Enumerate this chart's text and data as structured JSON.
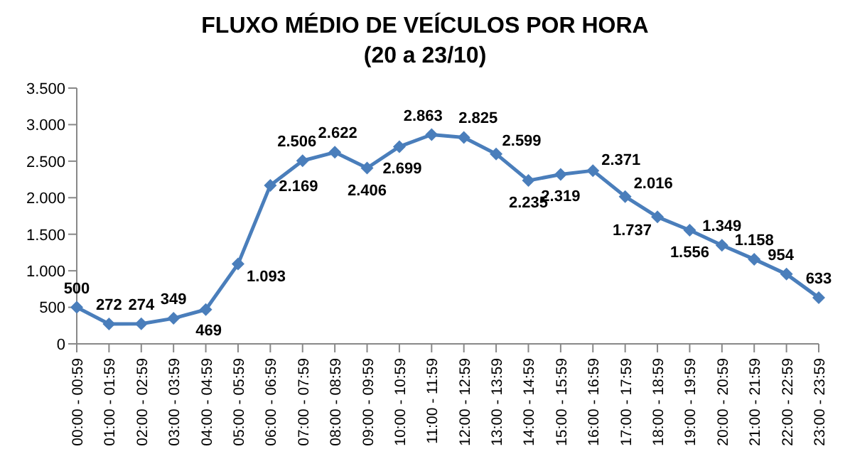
{
  "chart_data": {
    "type": "line",
    "title": "FLUXO MÉDIO DE VEÍCULOS POR HORA",
    "subtitle": "(20 a 23/10)",
    "categories": [
      "00:00 - 00:59",
      "01:00 - 01:59",
      "02:00 - 02:59",
      "03:00 - 03:59",
      "04:00 - 04:59",
      "05:00 - 05:59",
      "06:00 - 06:59",
      "07:00 - 07:59",
      "08:00 - 08:59",
      "09:00 - 09:59",
      "10:00 - 10:59",
      "11:00 - 11:59",
      "12:00 - 12:59",
      "13:00 - 13:59",
      "14:00 - 14:59",
      "15:00 - 15:59",
      "16:00 - 16:59",
      "17:00 - 17:59",
      "18:00 - 18:59",
      "19:00 - 19:59",
      "20:00 - 20:59",
      "21:00 - 21:59",
      "22:00 - 22:59",
      "23:00 - 23:59"
    ],
    "series": [
      {
        "color": "#4a7ebb",
        "values": [
          500,
          272,
          274,
          349,
          469,
          1093,
          2169,
          2506,
          2622,
          2406,
          2699,
          2863,
          2825,
          2599,
          2235,
          2319,
          2371,
          2016,
          1737,
          1556,
          1349,
          1158,
          954,
          633
        ],
        "value_labels": [
          "500",
          "272",
          "274",
          "349",
          "469",
          "1.093",
          "2.169",
          "2.506",
          "2.622",
          "2.406",
          "2.699",
          "2.863",
          "2.825",
          "2.599",
          "2.235",
          "2.319",
          "2.371",
          "2.016",
          "1.737",
          "1.556",
          "1.349",
          "1.158",
          "954",
          "633"
        ]
      }
    ],
    "ylim": [
      0,
      3500
    ],
    "yticks": [
      {
        "value": 0,
        "label": "0"
      },
      {
        "value": 500,
        "label": "500"
      },
      {
        "value": 1000,
        "label": "1.000"
      },
      {
        "value": 1500,
        "label": "1.500"
      },
      {
        "value": 2000,
        "label": "2.000"
      },
      {
        "value": 2500,
        "label": "2.500"
      },
      {
        "value": 3000,
        "label": "3.000"
      },
      {
        "value": 3500,
        "label": "3.500"
      }
    ],
    "grid": false,
    "legend": false,
    "marker": "diamond",
    "line_style": "solid"
  }
}
